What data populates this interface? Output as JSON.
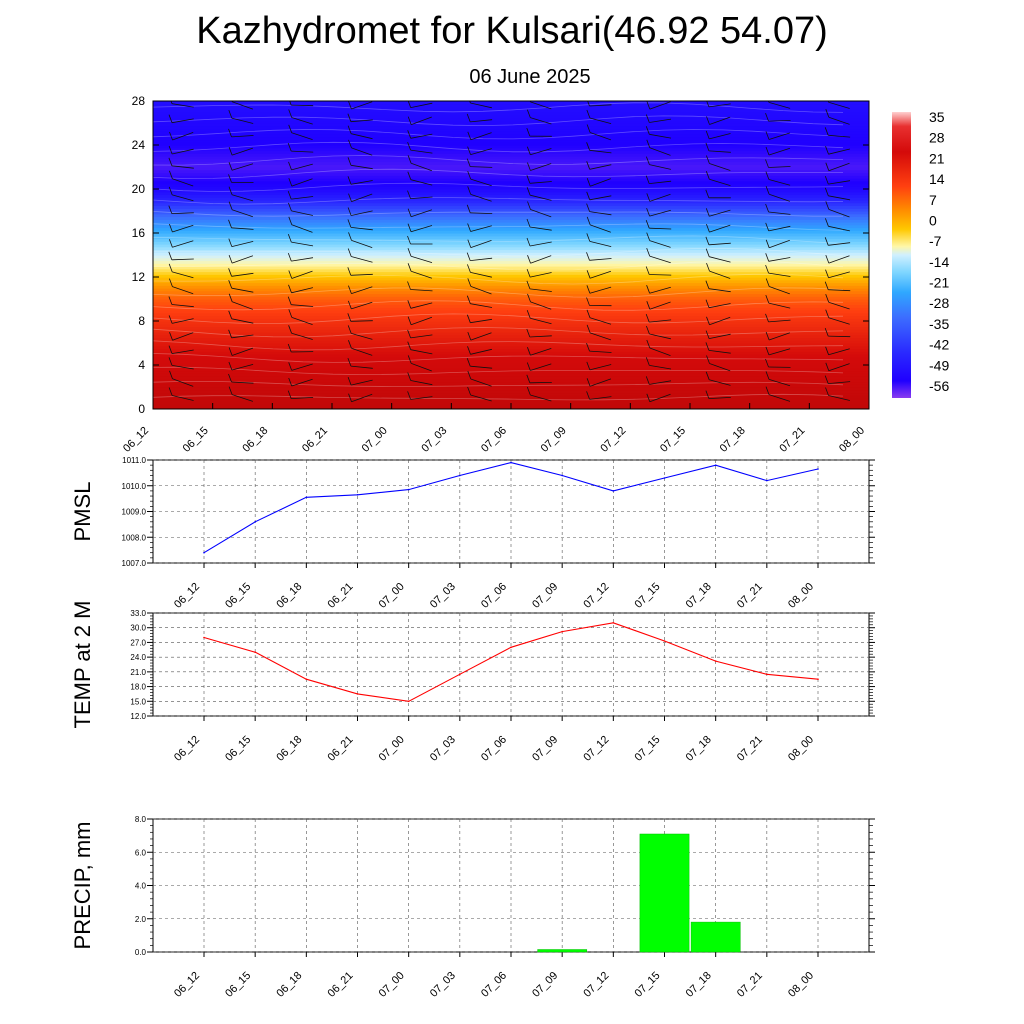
{
  "title": "Kazhydromet for Kulsari(46.92 54.07)",
  "subtitle": "06 June 2025",
  "time_labels": [
    "06_12",
    "06_15",
    "06_18",
    "06_21",
    "07_00",
    "07_03",
    "07_06",
    "07_09",
    "07_12",
    "07_15",
    "07_18",
    "07_21",
    "08_00"
  ],
  "chart_data": [
    {
      "type": "heatmap",
      "title": "",
      "xlabel": "",
      "ylabel": "",
      "ylim": [
        0,
        28
      ],
      "yticks": [
        "0",
        "4",
        "8",
        "12",
        "16",
        "20",
        "24",
        "28"
      ],
      "colorbar_labels": [
        "35",
        "28",
        "21",
        "14",
        "7",
        "0",
        "-7",
        "-14",
        "-21",
        "-28",
        "-35",
        "-42",
        "-49",
        "-56"
      ],
      "colorbar_range": [
        -63,
        38
      ],
      "temperature_profile": {
        "levels": [
          0,
          2,
          4,
          6,
          8,
          10,
          11,
          12,
          13,
          14,
          15,
          16,
          17,
          18,
          19,
          20,
          22,
          24,
          26,
          28
        ],
        "values": [
          30,
          26,
          22,
          17,
          12,
          6,
          1,
          -5,
          -12,
          -18,
          -26,
          -33,
          -40,
          -47,
          -53,
          -57,
          -60,
          -58,
          -57,
          -56
        ]
      },
      "overlays": "wind barbs",
      "colors": [
        "#8a2be2",
        "#2020ff",
        "#2f6cff",
        "#3fb4ff",
        "#8fe0ff",
        "#fff8a0",
        "#ffd000",
        "#ff9000",
        "#ff4000",
        "#e01010",
        "#c80808",
        "#ffb0b0"
      ]
    },
    {
      "type": "line",
      "title": "",
      "xlabel": "",
      "ylabel": "PMSL",
      "ylim": [
        1007.0,
        1011.0
      ],
      "yticks": [
        "1007.0",
        "1008.0",
        "1009.0",
        "1010.0",
        "1011.0"
      ],
      "x": [
        "06_12",
        "06_15",
        "06_18",
        "06_21",
        "07_00",
        "07_03",
        "07_06",
        "07_09",
        "07_12",
        "07_15",
        "07_18",
        "07_21",
        "08_00"
      ],
      "values": [
        1007.4,
        1008.6,
        1009.55,
        1009.65,
        1009.85,
        1010.4,
        1010.9,
        1010.4,
        1009.8,
        1010.3,
        1010.8,
        1010.2,
        1010.65
      ],
      "color": "#0000ff"
    },
    {
      "type": "line",
      "title": "",
      "xlabel": "",
      "ylabel": "TEMP at 2 M",
      "ylim": [
        12.0,
        33.0
      ],
      "yticks": [
        "12.0",
        "15.0",
        "18.0",
        "21.0",
        "24.0",
        "27.0",
        "30.0",
        "33.0"
      ],
      "x": [
        "06_12",
        "06_15",
        "06_18",
        "06_21",
        "07_00",
        "07_03",
        "07_06",
        "07_09",
        "07_12",
        "07_15",
        "07_18",
        "07_21",
        "08_00"
      ],
      "values": [
        28.0,
        25.0,
        19.5,
        16.5,
        15.0,
        20.5,
        26.0,
        29.2,
        31.0,
        27.3,
        23.2,
        20.5,
        19.5
      ],
      "color": "#ff0000"
    },
    {
      "type": "bar",
      "title": "",
      "xlabel": "",
      "ylabel": "PRECIP, mm",
      "ylim": [
        0.0,
        8.0
      ],
      "yticks": [
        "0.0",
        "2.0",
        "4.0",
        "6.0",
        "8.0"
      ],
      "categories": [
        "06_12",
        "06_15",
        "06_18",
        "06_21",
        "07_00",
        "07_03",
        "07_06",
        "07_09",
        "07_12",
        "07_15",
        "07_18",
        "07_21",
        "08_00"
      ],
      "values": [
        0,
        0,
        0,
        0,
        0,
        0,
        0,
        0.15,
        0,
        7.1,
        1.8,
        0,
        0
      ],
      "color": "#00ff00"
    }
  ]
}
